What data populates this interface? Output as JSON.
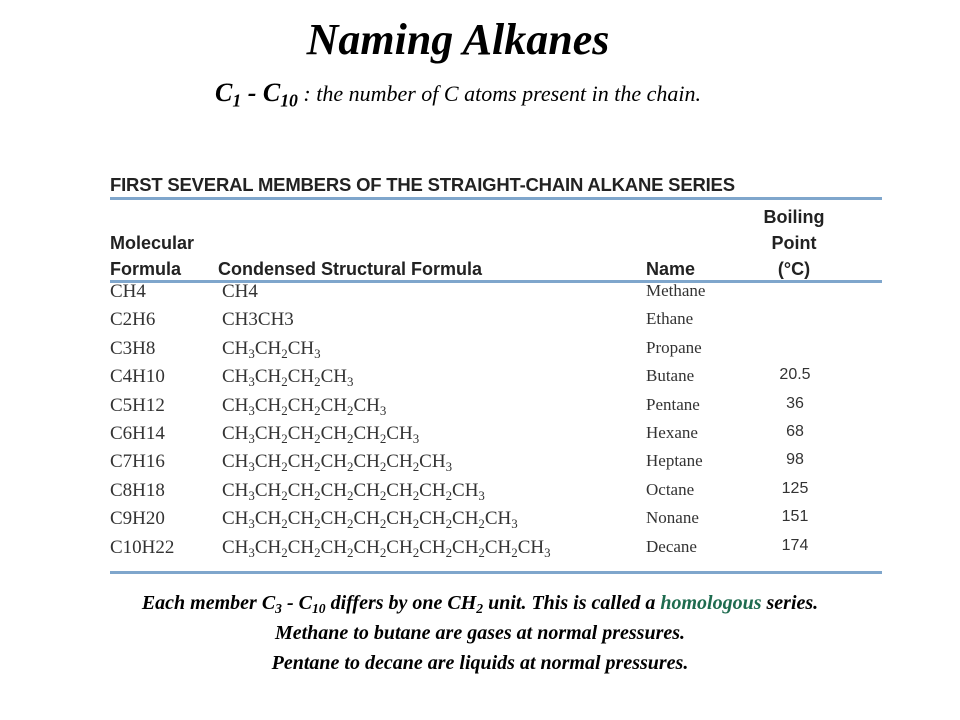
{
  "title": "Naming Alkanes",
  "subtitle": {
    "range_prefix": "C1 - C10",
    "text": " : the number of C atoms present in the chain."
  },
  "table": {
    "title": "FIRST SEVERAL MEMBERS OF THE STRAIGHT-CHAIN ALKANE SERIES",
    "headers": {
      "molecular_1": "Molecular",
      "molecular_2": "Formula",
      "condensed": "Condensed Structural Formula",
      "name": "Name",
      "bp_1": "Boiling",
      "bp_2": "Point",
      "bp_3": "(°C)"
    },
    "rows": [
      {
        "molecular": "CH4",
        "condensed": "CH4",
        "name": "Methane",
        "bp": ""
      },
      {
        "molecular": "C2H6",
        "condensed": "CH3CH3",
        "name": "Ethane",
        "bp": ""
      },
      {
        "molecular": "C3H8",
        "condensed": "CH3CH2CH3",
        "name": "Propane",
        "bp": ""
      },
      {
        "molecular": "C4H10",
        "condensed": "CH3CH2CH2CH3",
        "name": "Butane",
        "bp": "20.5"
      },
      {
        "molecular": "C5H12",
        "condensed": "CH3CH2CH2CH2CH3",
        "name": "Pentane",
        "bp": "36"
      },
      {
        "molecular": "C6H14",
        "condensed": "CH3CH2CH2CH2CH2CH3",
        "name": "Hexane",
        "bp": "68"
      },
      {
        "molecular": "C7H16",
        "condensed": "CH3CH2CH2CH2CH2CH2CH3",
        "name": "Heptane",
        "bp": "98"
      },
      {
        "molecular": "C8H18",
        "condensed": "CH3CH2CH2CH2CH2CH2CH2CH3",
        "name": "Octane",
        "bp": "125"
      },
      {
        "molecular": "C9H20",
        "condensed": "CH3CH2CH2CH2CH2CH2CH2CH2CH3",
        "name": "Nonane",
        "bp": "151"
      },
      {
        "molecular": "C10H22",
        "condensed": "CH3CH2CH2CH2CH2CH2CH2CH2CH2CH3",
        "name": "Decane",
        "bp": "174"
      }
    ]
  },
  "footer": {
    "line1_a": "Each member C3 - C10 differs by one CH2 unit.  This is called a ",
    "line1_highlight": "homologous",
    "line1_b": " series.",
    "line2": "Methane to butane are gases at normal pressures.",
    "line3": "Pentane to decane are liquids at normal pressures."
  },
  "colors": {
    "rule": "#7fa6cc",
    "highlight": "#1e6b4f"
  }
}
